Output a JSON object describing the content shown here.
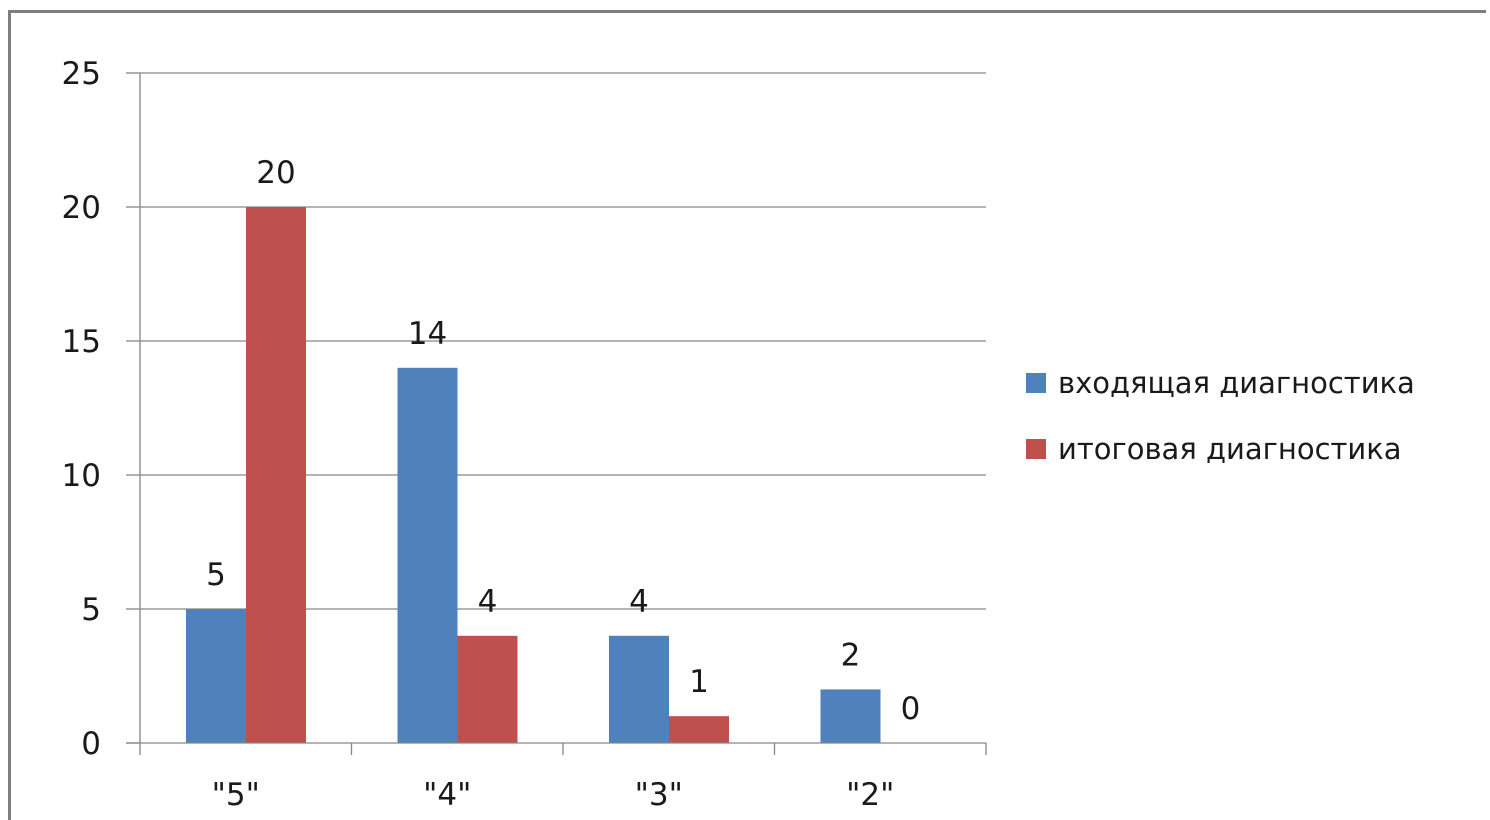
{
  "chart_data": {
    "type": "bar",
    "categories": [
      "\"5\"",
      "\"4\"",
      "\"3\"",
      "\"2\""
    ],
    "series": [
      {
        "name": "входящая диагностика",
        "values": [
          5,
          14,
          4,
          2
        ],
        "color": "#4f81bd"
      },
      {
        "name": "итоговая диагностика",
        "values": [
          20,
          4,
          1,
          0
        ],
        "color": "#c0504d"
      }
    ],
    "ylim": [
      0,
      25
    ],
    "yticks": [
      0,
      5,
      10,
      15,
      20,
      25
    ],
    "grid": true,
    "legend_position": "right",
    "data_labels": true
  }
}
